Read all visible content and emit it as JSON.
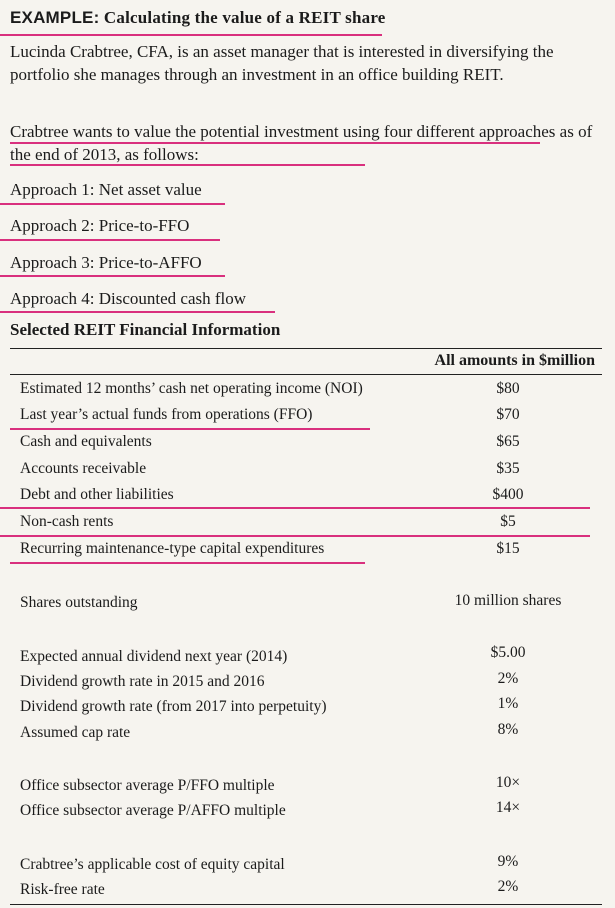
{
  "example": {
    "title_lead": "EXAMPLE:",
    "title_rest": "Calculating the value of a REIT share",
    "intro": "Lucinda Crabtree, CFA, is an asset manager that is interested in diversifying the portfolio she manages through an investment in an office building REIT.",
    "approaches_intro": "Crabtree wants to value the potential investment using four different approaches as of the end of 2013, as follows:",
    "approaches": [
      "Approach 1: Net asset value",
      "Approach 2: Price-to-FFO",
      "Approach 3: Price-to-AFFO",
      "Approach 4: Discounted cash flow"
    ]
  },
  "table": {
    "title": "Selected REIT Financial Information",
    "column_header": "All amounts in $million",
    "rows": [
      {
        "label": "Estimated 12 months’ cash net operating income (NOI)",
        "value": "$80"
      },
      {
        "label": "Last year’s actual funds from operations (FFO)",
        "value": "$70"
      },
      {
        "label": "Cash and equivalents",
        "value": "$65"
      },
      {
        "label": "Accounts receivable",
        "value": "$35"
      },
      {
        "label": "Debt and other liabilities",
        "value": "$400"
      },
      {
        "label": "Non-cash rents",
        "value": "$5"
      },
      {
        "label": "Recurring maintenance-type capital expenditures",
        "value": "$15"
      },
      {
        "label": "Shares outstanding",
        "value": "10 million shares"
      },
      {
        "label": "Expected annual dividend next year (2014)",
        "value": "$5.00"
      },
      {
        "label": "Dividend growth rate in 2015 and 2016",
        "value": "2%"
      },
      {
        "label": "Dividend growth rate (from 2017 into perpetuity)",
        "value": "1%"
      },
      {
        "label": "Assumed cap rate",
        "value": "8%"
      },
      {
        "label": "Office subsector average P/FFO multiple",
        "value": "10×"
      },
      {
        "label": "Office subsector average P/AFFO multiple",
        "value": "14×"
      },
      {
        "label": "Crabtree’s applicable cost of equity capital",
        "value": "9%"
      },
      {
        "label": "Risk-free rate",
        "value": "2%"
      }
    ]
  },
  "colors": {
    "highlight": "#d9307e",
    "background": "#f6f4ef",
    "text": "#1b1b1b"
  }
}
